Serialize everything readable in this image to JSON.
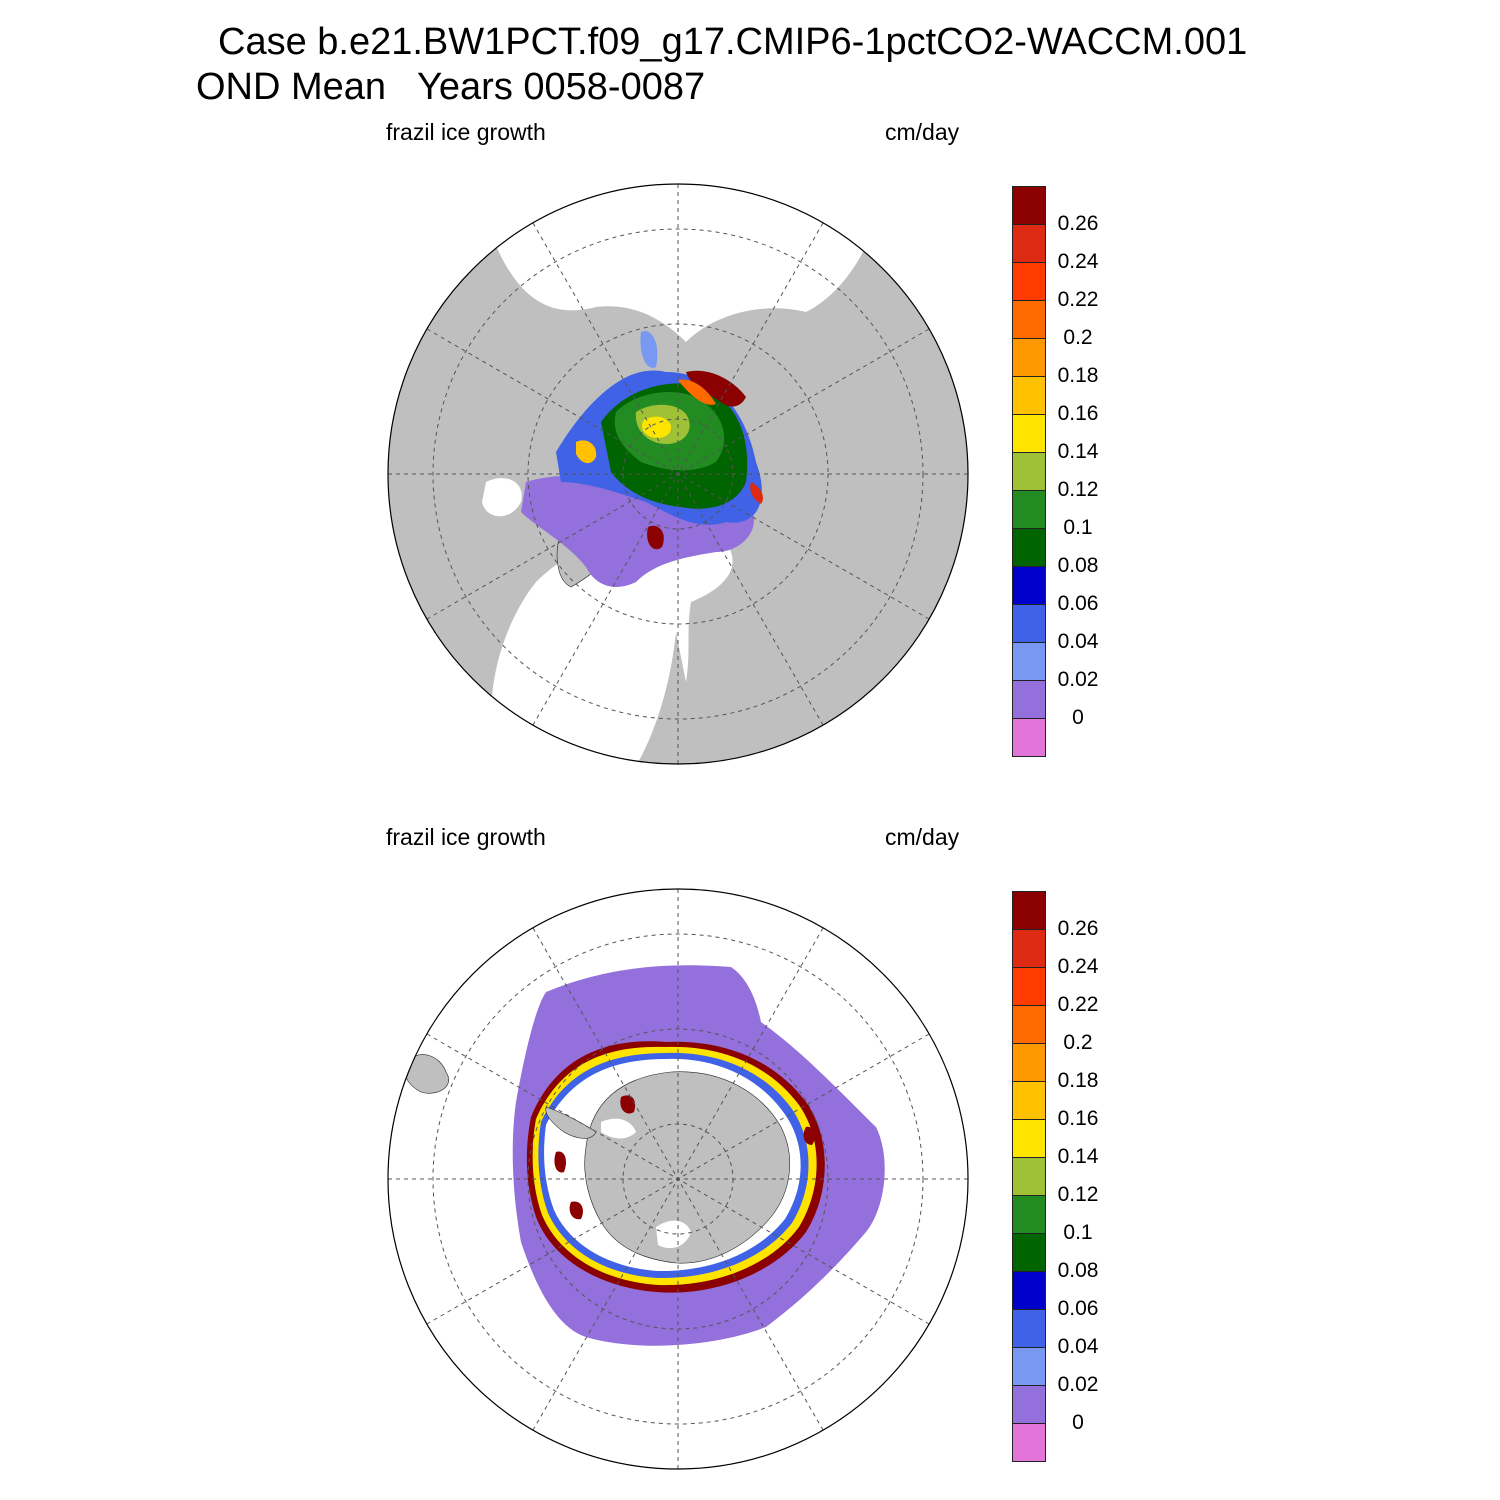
{
  "title_line1": "Case b.e21.BW1PCT.f09_g17.CMIP6-1pctCO2-WACCM.001",
  "title_line2": "OND Mean   Years 0058-0087",
  "panels": [
    {
      "left_label": "frazil ice growth",
      "right_label": "cm/day"
    },
    {
      "left_label": "frazil ice growth",
      "right_label": "cm/day"
    }
  ],
  "colorbar": {
    "labels": [
      "0.26",
      "0.24",
      "0.22",
      "0.2",
      "0.18",
      "0.16",
      "0.14",
      "0.12",
      "0.1",
      "0.08",
      "0.06",
      "0.04",
      "0.02",
      "0"
    ],
    "colors": [
      "#8b0000",
      "#dd2a12",
      "#ff3b00",
      "#ff6a00",
      "#ff9800",
      "#ffc100",
      "#ffe400",
      "#9ec136",
      "#228b22",
      "#006400",
      "#0000cd",
      "#3f62e6",
      "#7898f2",
      "#9370db",
      "#e374d9"
    ]
  },
  "colors": {
    "land": "#bfbfbf",
    "no_data": "#ffffff",
    "grid": "#555555"
  }
}
